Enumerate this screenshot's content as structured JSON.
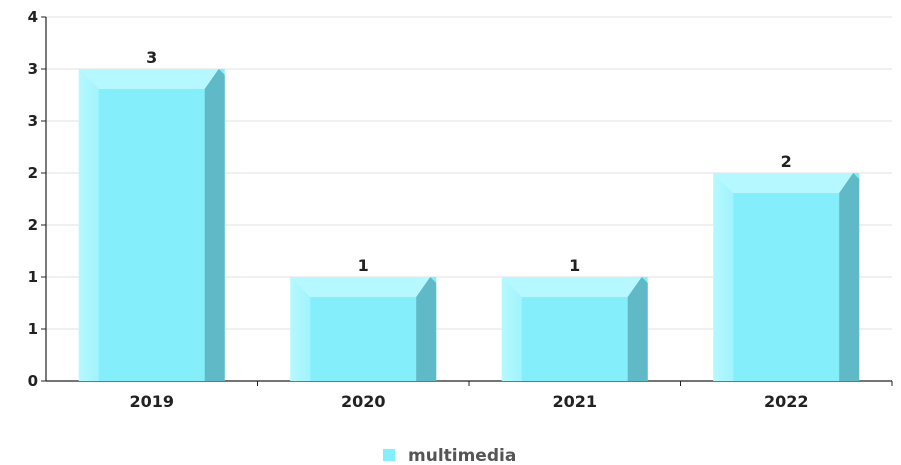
{
  "chart_data": {
    "type": "bar",
    "categories": [
      "2019",
      "2020",
      "2021",
      "2022"
    ],
    "series": [
      {
        "name": "multimedia",
        "values": [
          3,
          1,
          1,
          2
        ],
        "color": "#85EEFB"
      }
    ],
    "data_labels": [
      "3",
      "1",
      "1",
      "2"
    ],
    "y_tick_labels": [
      "0",
      "1",
      "1",
      "2",
      "2",
      "3",
      "3",
      "4"
    ],
    "ylim": [
      0,
      3.5
    ],
    "grid": true,
    "legend": "bottom-center",
    "title": "",
    "xlabel": "",
    "ylabel": ""
  },
  "colors": {
    "bar_main": "#85EEFB",
    "bar_light": "#B6F8FF",
    "bar_dark": "#5FB9C7",
    "grid": "#E2E2E2",
    "axis": "#222222"
  }
}
